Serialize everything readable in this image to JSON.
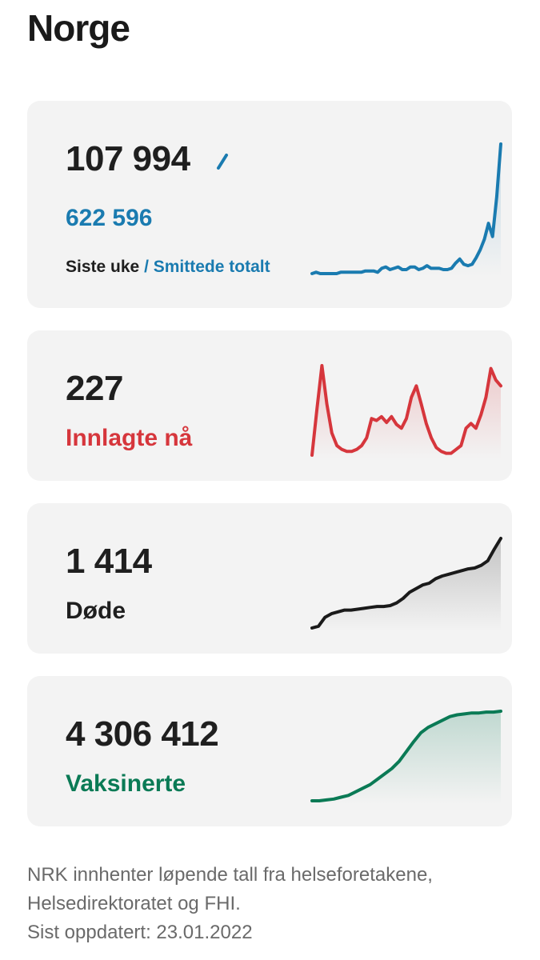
{
  "page": {
    "title": "Norge"
  },
  "cards": {
    "cases": {
      "week_value": "107 994",
      "total_value": "622 596",
      "legend_week": "Siste uke",
      "legend_separator": "/",
      "legend_total": "Smittede totalt",
      "color": "#1a7bb0",
      "trend": [
        2,
        3,
        2,
        2,
        2,
        2,
        2,
        3,
        3,
        3,
        3,
        3,
        3,
        4,
        4,
        4,
        3,
        6,
        7,
        5,
        6,
        7,
        5,
        5,
        7,
        7,
        5,
        6,
        8,
        6,
        6,
        6,
        5,
        5,
        6,
        10,
        13,
        9,
        8,
        9,
        14,
        20,
        28,
        40,
        30,
        60,
        100
      ]
    },
    "hospitalized": {
      "value": "227",
      "label": "Innlagte nå",
      "color": "#d6363c",
      "trend": [
        2,
        50,
        95,
        55,
        25,
        12,
        8,
        6,
        6,
        8,
        12,
        20,
        40,
        38,
        42,
        36,
        42,
        34,
        30,
        40,
        62,
        74,
        55,
        35,
        20,
        10,
        6,
        4,
        4,
        8,
        12,
        30,
        35,
        30,
        44,
        62,
        92,
        80,
        74
      ]
    },
    "deaths": {
      "value": "1 414",
      "label": "Døde",
      "color": "#1a1a1a",
      "trend": [
        0,
        2,
        12,
        16,
        18,
        20,
        20,
        21,
        22,
        23,
        24,
        24,
        25,
        28,
        33,
        40,
        44,
        48,
        50,
        55,
        58,
        60,
        62,
        64,
        66,
        67,
        70,
        75,
        88,
        100
      ]
    },
    "vaccinated": {
      "value": "4 306 412",
      "label": "Vaksinerte",
      "color": "#0a7a55",
      "trend": [
        0,
        0,
        1,
        2,
        4,
        6,
        10,
        14,
        18,
        24,
        30,
        36,
        44,
        55,
        66,
        76,
        82,
        86,
        90,
        94,
        96,
        97,
        98,
        98,
        99,
        99,
        100
      ]
    }
  },
  "footnote": {
    "line1": "NRK innhenter løpende tall fra helseforetakene,",
    "line2": "Helsedirektoratet og FHI.",
    "line3": "Sist oppdatert: 23.01.2022"
  }
}
